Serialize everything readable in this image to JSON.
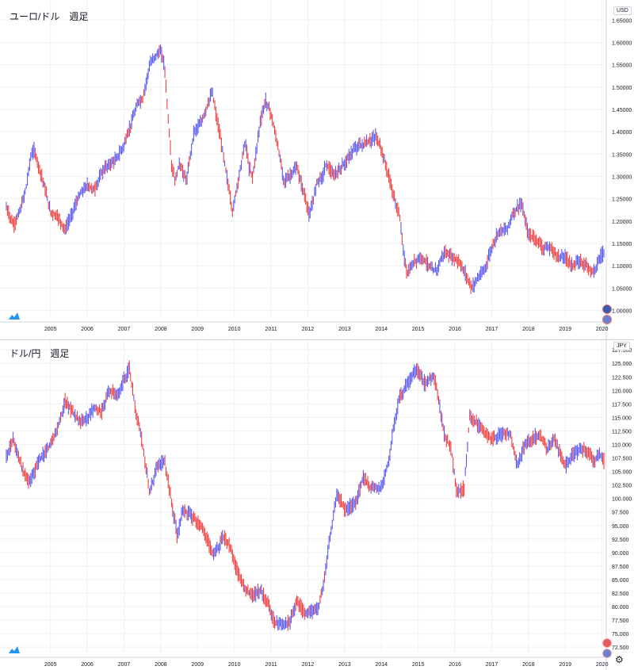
{
  "colors": {
    "bull": "#5b5bf0",
    "bear": "#ef4040",
    "grid": "#eef0f3",
    "axis": "#d1d4dc",
    "text": "#131722"
  },
  "charts": {
    "top": {
      "title": "ユーロ/ドル　週足",
      "currency": "USD"
    },
    "bottom": {
      "title": "ドル/円　週足",
      "currency": "JPY"
    }
  },
  "chart_data": [
    {
      "type": "line",
      "title": "ユーロ/ドル　週足",
      "x_ticks": [
        "2005",
        "2006",
        "2007",
        "2008",
        "2009",
        "2010",
        "2011",
        "2012",
        "2013",
        "2014",
        "2015",
        "2016",
        "2017",
        "2018",
        "2019",
        "2020"
      ],
      "y_ticks": [
        "1.00000",
        "1.05000",
        "1.10000",
        "1.15000",
        "1.20000",
        "1.25000",
        "1.30000",
        "1.35000",
        "1.40000",
        "1.45000",
        "1.50000",
        "1.55000",
        "1.60000",
        "1.65000"
      ],
      "ylim": [
        0.985,
        1.67
      ],
      "xlim": [
        2004.3,
        2020.55
      ],
      "series": [
        {
          "x": [
            2004.3,
            2004.5,
            2004.7,
            2004.85,
            2004.95,
            2005.05,
            2005.3,
            2005.5,
            2005.7,
            2005.9,
            2006.0,
            2006.3,
            2006.5,
            2006.7,
            2006.9,
            2007.0,
            2007.3,
            2007.5,
            2007.7,
            2007.9,
            2008.0,
            2008.2,
            2008.35,
            2008.5,
            2008.6,
            2008.7,
            2008.8,
            2008.9,
            2009.0,
            2009.2,
            2009.4,
            2009.6,
            2009.9,
            2010.0,
            2010.2,
            2010.45,
            2010.6,
            2010.8,
            2010.9,
            2011.0,
            2011.2,
            2011.35,
            2011.5,
            2011.7,
            2011.85,
            2012.0,
            2012.2,
            2012.4,
            2012.55,
            2012.75,
            2012.9,
            2013.0,
            2013.2,
            2013.5,
            2013.75,
            2013.9,
            2014.0,
            2014.2,
            2014.35,
            2014.5,
            2014.7,
            2014.85,
            2015.0,
            2015.1,
            2015.2,
            2015.4,
            2015.6,
            2015.9,
            2016.0,
            2016.2,
            2016.4,
            2016.6,
            2016.8,
            2016.95,
            2017.1,
            2017.3,
            2017.5,
            2017.7,
            2017.9,
            2018.1,
            2018.3,
            2018.5,
            2018.7,
            2018.9,
            2019.1,
            2019.3,
            2019.5,
            2019.7,
            2019.9,
            2020.1,
            2020.2,
            2020.3,
            2020.45,
            2020.55
          ],
          "y": [
            1.23,
            1.19,
            1.23,
            1.28,
            1.34,
            1.36,
            1.29,
            1.22,
            1.21,
            1.18,
            1.2,
            1.26,
            1.28,
            1.27,
            1.31,
            1.32,
            1.34,
            1.37,
            1.42,
            1.47,
            1.47,
            1.55,
            1.57,
            1.58,
            1.55,
            1.43,
            1.32,
            1.29,
            1.33,
            1.29,
            1.4,
            1.42,
            1.49,
            1.44,
            1.35,
            1.22,
            1.29,
            1.38,
            1.32,
            1.3,
            1.42,
            1.47,
            1.44,
            1.36,
            1.29,
            1.3,
            1.32,
            1.26,
            1.21,
            1.29,
            1.3,
            1.33,
            1.3,
            1.33,
            1.36,
            1.37,
            1.37,
            1.38,
            1.39,
            1.36,
            1.3,
            1.25,
            1.21,
            1.13,
            1.08,
            1.11,
            1.12,
            1.09,
            1.09,
            1.13,
            1.12,
            1.11,
            1.08,
            1.05,
            1.07,
            1.09,
            1.14,
            1.18,
            1.18,
            1.22,
            1.24,
            1.17,
            1.16,
            1.14,
            1.14,
            1.12,
            1.12,
            1.1,
            1.11,
            1.1,
            1.09,
            1.09,
            1.12,
            1.13
          ]
        }
      ]
    },
    {
      "type": "line",
      "title": "ドル/円　週足",
      "x_ticks": [
        "2005",
        "2006",
        "2007",
        "2008",
        "2009",
        "2010",
        "2011",
        "2012",
        "2013",
        "2014",
        "2015",
        "2016",
        "2017",
        "2018",
        "2019",
        "2020"
      ],
      "y_ticks": [
        "72.500",
        "75.000",
        "77.500",
        "80.000",
        "82.500",
        "85.000",
        "87.500",
        "90.000",
        "92.500",
        "95.000",
        "97.500",
        "100.000",
        "102.500",
        "105.000",
        "107.500",
        "110.000",
        "112.500",
        "115.000",
        "117.500",
        "120.000",
        "122.500",
        "125.000",
        "127.500"
      ],
      "ylim": [
        71.5,
        128.7
      ],
      "xlim": [
        2004.3,
        2020.55
      ],
      "series": [
        {
          "x": [
            2004.3,
            2004.5,
            2004.7,
            2004.9,
            2005.0,
            2005.2,
            2005.5,
            2005.7,
            2005.9,
            2006.0,
            2006.2,
            2006.4,
            2006.7,
            2006.9,
            2007.1,
            2007.3,
            2007.5,
            2007.65,
            2007.8,
            2008.0,
            2008.2,
            2008.4,
            2008.6,
            2008.8,
            2008.95,
            2009.1,
            2009.3,
            2009.6,
            2009.9,
            2010.0,
            2010.2,
            2010.4,
            2010.6,
            2010.8,
            2011.0,
            2011.2,
            2011.4,
            2011.6,
            2011.8,
            2012.0,
            2012.2,
            2012.4,
            2012.6,
            2012.8,
            2012.95,
            2013.1,
            2013.3,
            2013.5,
            2013.8,
            2014.0,
            2014.2,
            2014.5,
            2014.7,
            2014.85,
            2015.0,
            2015.2,
            2015.45,
            2015.7,
            2015.9,
            2016.0,
            2016.2,
            2016.4,
            2016.55,
            2016.75,
            2016.9,
            2017.1,
            2017.3,
            2017.5,
            2017.8,
            2018.0,
            2018.2,
            2018.4,
            2018.6,
            2018.8,
            2019.0,
            2019.2,
            2019.5,
            2019.7,
            2019.9,
            2020.0,
            2020.15,
            2020.3,
            2020.45,
            2020.55
          ],
          "y": [
            108,
            111,
            106,
            103,
            104,
            107,
            110,
            113,
            118,
            117,
            115,
            114,
            117,
            116,
            120,
            119,
            122,
            124,
            117,
            110,
            101,
            106,
            107,
            99,
            93,
            98,
            97,
            95,
            90,
            90,
            93,
            91,
            86,
            83,
            82,
            83,
            81,
            77,
            77,
            77,
            81,
            79,
            79,
            80,
            85,
            93,
            101,
            98,
            99,
            104,
            102,
            102,
            107,
            114,
            119,
            121,
            124,
            121,
            123,
            121,
            112,
            109,
            101,
            102,
            115,
            114,
            112,
            111,
            112,
            112,
            106,
            110,
            111,
            112,
            109,
            111,
            106,
            108,
            109,
            109,
            108,
            107,
            108,
            107
          ]
        }
      ]
    }
  ]
}
